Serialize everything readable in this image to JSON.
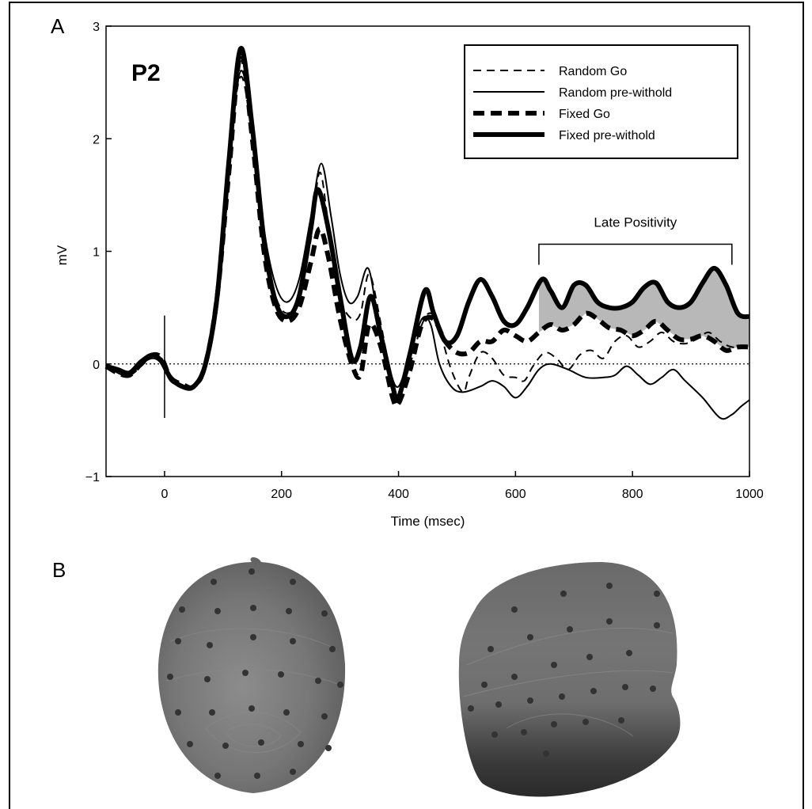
{
  "panel_a_label": "A",
  "panel_b_label": "B",
  "chart_data": {
    "type": "line",
    "title": "P2",
    "xlabel": "Time (msec)",
    "ylabel": "mV",
    "xlim": [
      -100,
      1000
    ],
    "ylim": [
      -1,
      3
    ],
    "x_ticks": [
      0,
      200,
      400,
      600,
      800,
      1000
    ],
    "y_ticks": [
      -1,
      0,
      1,
      2,
      3
    ],
    "x_tick_labels": [
      "0",
      "200",
      "400",
      "600",
      "800",
      "1000"
    ],
    "y_tick_labels": [
      "−1",
      "0",
      "1",
      "2",
      "3"
    ],
    "legend_position": "top-right",
    "grid": false,
    "zero_line": "dotted",
    "annotation": {
      "text": "Late Positivity",
      "x_range": [
        640,
        970
      ],
      "y": 1.0
    },
    "shaded_region": {
      "between": [
        "Fixed pre-withold",
        "Fixed Go"
      ],
      "x_range": [
        640,
        1000
      ],
      "color": "#b8b8b8"
    },
    "stimulus_marker": {
      "x": 0,
      "y_range": [
        -0.48,
        0.43
      ]
    },
    "series": [
      {
        "name": "Random Go",
        "style": "thin-dashed",
        "points": [
          [
            -100,
            0
          ],
          [
            -80,
            -0.05
          ],
          [
            -60,
            -0.1
          ],
          [
            -40,
            -0.02
          ],
          [
            -20,
            0.08
          ],
          [
            -5,
            0.05
          ],
          [
            10,
            -0.12
          ],
          [
            30,
            -0.2
          ],
          [
            50,
            -0.2
          ],
          [
            70,
            -0.05
          ],
          [
            90,
            0.6
          ],
          [
            110,
            1.8
          ],
          [
            130,
            2.55
          ],
          [
            150,
            2.0
          ],
          [
            170,
            1.1
          ],
          [
            190,
            0.6
          ],
          [
            210,
            0.45
          ],
          [
            230,
            0.6
          ],
          [
            250,
            1.1
          ],
          [
            265,
            1.7
          ],
          [
            280,
            1.25
          ],
          [
            300,
            0.6
          ],
          [
            320,
            0.4
          ],
          [
            335,
            0.45
          ],
          [
            350,
            0.8
          ],
          [
            370,
            0.35
          ],
          [
            390,
            -0.2
          ],
          [
            400,
            -0.3
          ],
          [
            420,
            0.0
          ],
          [
            440,
            0.35
          ],
          [
            455,
            0.45
          ],
          [
            470,
            0.3
          ],
          [
            490,
            -0.05
          ],
          [
            510,
            -0.25
          ],
          [
            520,
            -0.12
          ],
          [
            540,
            0.1
          ],
          [
            560,
            0.05
          ],
          [
            580,
            -0.1
          ],
          [
            600,
            -0.12
          ],
          [
            615,
            -0.15
          ],
          [
            630,
            -0.02
          ],
          [
            650,
            0.1
          ],
          [
            670,
            0.05
          ],
          [
            690,
            -0.05
          ],
          [
            710,
            0.08
          ],
          [
            730,
            0.12
          ],
          [
            750,
            0.05
          ],
          [
            770,
            0.2
          ],
          [
            790,
            0.25
          ],
          [
            810,
            0.15
          ],
          [
            830,
            0.2
          ],
          [
            850,
            0.28
          ],
          [
            870,
            0.2
          ],
          [
            890,
            0.18
          ],
          [
            910,
            0.22
          ],
          [
            930,
            0.28
          ],
          [
            950,
            0.2
          ],
          [
            970,
            0.15
          ],
          [
            1000,
            0.15
          ]
        ]
      },
      {
        "name": "Random pre-withold",
        "style": "thin-solid",
        "points": [
          [
            -100,
            0
          ],
          [
            -80,
            -0.08
          ],
          [
            -60,
            -0.1
          ],
          [
            -40,
            0.0
          ],
          [
            -20,
            0.05
          ],
          [
            -5,
            0.0
          ],
          [
            10,
            -0.15
          ],
          [
            30,
            -0.2
          ],
          [
            50,
            -0.2
          ],
          [
            70,
            -0.05
          ],
          [
            90,
            0.55
          ],
          [
            110,
            1.8
          ],
          [
            130,
            2.6
          ],
          [
            150,
            2.1
          ],
          [
            170,
            1.2
          ],
          [
            190,
            0.7
          ],
          [
            210,
            0.55
          ],
          [
            230,
            0.75
          ],
          [
            250,
            1.3
          ],
          [
            268,
            1.78
          ],
          [
            285,
            1.3
          ],
          [
            300,
            0.8
          ],
          [
            315,
            0.55
          ],
          [
            330,
            0.6
          ],
          [
            348,
            0.85
          ],
          [
            365,
            0.4
          ],
          [
            385,
            -0.05
          ],
          [
            400,
            -0.2
          ],
          [
            420,
            0.1
          ],
          [
            440,
            0.4
          ],
          [
            455,
            0.35
          ],
          [
            470,
            0.0
          ],
          [
            490,
            -0.2
          ],
          [
            510,
            -0.25
          ],
          [
            540,
            -0.2
          ],
          [
            560,
            -0.15
          ],
          [
            580,
            -0.2
          ],
          [
            600,
            -0.3
          ],
          [
            620,
            -0.2
          ],
          [
            640,
            -0.05
          ],
          [
            660,
            0.0
          ],
          [
            690,
            -0.05
          ],
          [
            720,
            -0.12
          ],
          [
            750,
            -0.12
          ],
          [
            770,
            -0.1
          ],
          [
            790,
            -0.02
          ],
          [
            810,
            -0.1
          ],
          [
            830,
            -0.18
          ],
          [
            850,
            -0.12
          ],
          [
            870,
            -0.05
          ],
          [
            890,
            -0.15
          ],
          [
            920,
            -0.3
          ],
          [
            950,
            -0.48
          ],
          [
            970,
            -0.45
          ],
          [
            985,
            -0.38
          ],
          [
            1000,
            -0.32
          ]
        ]
      },
      {
        "name": "Fixed Go",
        "style": "thick-dashed",
        "points": [
          [
            -100,
            -0.02
          ],
          [
            -80,
            -0.08
          ],
          [
            -60,
            -0.1
          ],
          [
            -40,
            0.0
          ],
          [
            -20,
            0.08
          ],
          [
            -5,
            0.05
          ],
          [
            10,
            -0.12
          ],
          [
            30,
            -0.18
          ],
          [
            50,
            -0.2
          ],
          [
            70,
            0.0
          ],
          [
            90,
            0.6
          ],
          [
            110,
            1.7
          ],
          [
            130,
            2.75
          ],
          [
            150,
            2.0
          ],
          [
            170,
            1.0
          ],
          [
            190,
            0.5
          ],
          [
            210,
            0.38
          ],
          [
            230,
            0.5
          ],
          [
            250,
            0.9
          ],
          [
            265,
            1.2
          ],
          [
            280,
            0.95
          ],
          [
            300,
            0.4
          ],
          [
            320,
            0.0
          ],
          [
            335,
            -0.1
          ],
          [
            350,
            0.35
          ],
          [
            370,
            0.15
          ],
          [
            390,
            -0.3
          ],
          [
            400,
            -0.35
          ],
          [
            420,
            -0.05
          ],
          [
            440,
            0.35
          ],
          [
            460,
            0.4
          ],
          [
            480,
            0.2
          ],
          [
            500,
            0.1
          ],
          [
            520,
            0.1
          ],
          [
            540,
            0.2
          ],
          [
            560,
            0.2
          ],
          [
            580,
            0.3
          ],
          [
            600,
            0.25
          ],
          [
            620,
            0.2
          ],
          [
            640,
            0.28
          ],
          [
            660,
            0.35
          ],
          [
            680,
            0.3
          ],
          [
            700,
            0.35
          ],
          [
            720,
            0.45
          ],
          [
            740,
            0.4
          ],
          [
            760,
            0.32
          ],
          [
            780,
            0.3
          ],
          [
            800,
            0.25
          ],
          [
            820,
            0.3
          ],
          [
            840,
            0.38
          ],
          [
            860,
            0.3
          ],
          [
            880,
            0.22
          ],
          [
            900,
            0.22
          ],
          [
            920,
            0.25
          ],
          [
            940,
            0.2
          ],
          [
            960,
            0.12
          ],
          [
            980,
            0.15
          ],
          [
            1000,
            0.15
          ]
        ]
      },
      {
        "name": "Fixed pre-withold",
        "style": "thick-solid",
        "points": [
          [
            -100,
            -0.02
          ],
          [
            -80,
            -0.05
          ],
          [
            -60,
            -0.08
          ],
          [
            -40,
            0.02
          ],
          [
            -20,
            0.08
          ],
          [
            -5,
            0.02
          ],
          [
            10,
            -0.12
          ],
          [
            30,
            -0.2
          ],
          [
            50,
            -0.2
          ],
          [
            70,
            0.0
          ],
          [
            90,
            0.6
          ],
          [
            110,
            1.8
          ],
          [
            130,
            2.8
          ],
          [
            150,
            2.1
          ],
          [
            170,
            1.1
          ],
          [
            190,
            0.55
          ],
          [
            210,
            0.42
          ],
          [
            230,
            0.6
          ],
          [
            250,
            1.2
          ],
          [
            262,
            1.55
          ],
          [
            280,
            1.2
          ],
          [
            300,
            0.6
          ],
          [
            320,
            0.05
          ],
          [
            335,
            0.15
          ],
          [
            352,
            0.6
          ],
          [
            370,
            0.25
          ],
          [
            390,
            -0.2
          ],
          [
            400,
            -0.3
          ],
          [
            420,
            0.1
          ],
          [
            445,
            0.65
          ],
          [
            460,
            0.45
          ],
          [
            480,
            0.2
          ],
          [
            500,
            0.25
          ],
          [
            520,
            0.55
          ],
          [
            540,
            0.75
          ],
          [
            560,
            0.6
          ],
          [
            580,
            0.38
          ],
          [
            600,
            0.35
          ],
          [
            620,
            0.5
          ],
          [
            645,
            0.75
          ],
          [
            660,
            0.65
          ],
          [
            680,
            0.5
          ],
          [
            700,
            0.7
          ],
          [
            720,
            0.7
          ],
          [
            740,
            0.55
          ],
          [
            760,
            0.5
          ],
          [
            780,
            0.5
          ],
          [
            800,
            0.55
          ],
          [
            820,
            0.68
          ],
          [
            840,
            0.72
          ],
          [
            860,
            0.55
          ],
          [
            880,
            0.5
          ],
          [
            900,
            0.55
          ],
          [
            920,
            0.72
          ],
          [
            940,
            0.85
          ],
          [
            960,
            0.7
          ],
          [
            980,
            0.45
          ],
          [
            1000,
            0.42
          ]
        ]
      }
    ]
  }
}
